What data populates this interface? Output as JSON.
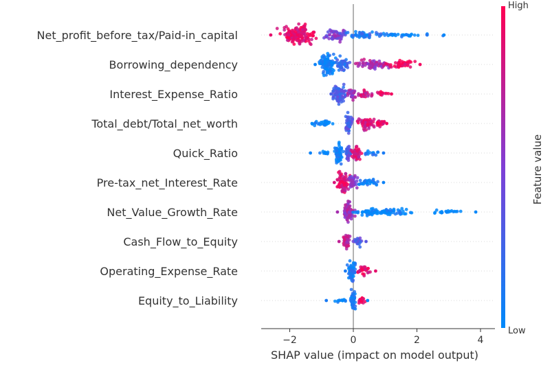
{
  "chart_data": {
    "type": "scatter",
    "subtype": "shap-beeswarm",
    "xlabel": "SHAP value (impact on model output)",
    "xlim": [
      -2.85,
      4.1
    ],
    "xticks": [
      -2,
      0,
      2,
      4
    ],
    "xtick_labels": [
      "−2",
      "0",
      "2",
      "4"
    ],
    "features": [
      {
        "name": "Net_profit_before_tax/Paid-in_capital",
        "min": -2.6,
        "max": 2.85,
        "clusters": [
          {
            "c": -1.75,
            "w": 0.45,
            "h": 0.9,
            "n": 150,
            "v": 0.9
          },
          {
            "c": -0.55,
            "w": 0.3,
            "h": 0.55,
            "n": 55,
            "v": 0.5
          },
          {
            "c": 0.3,
            "w": 0.6,
            "h": 0.35,
            "n": 45,
            "v": 0.15
          },
          {
            "c": 1.5,
            "w": 0.9,
            "h": 0.15,
            "n": 35,
            "v": 0.02
          }
        ]
      },
      {
        "name": "Borrowing_dependency",
        "min": -1.2,
        "max": 2.1,
        "clusters": [
          {
            "c": -0.8,
            "w": 0.22,
            "h": 0.95,
            "n": 110,
            "v": 0.05
          },
          {
            "c": -0.35,
            "w": 0.2,
            "h": 0.6,
            "n": 50,
            "v": 0.2
          },
          {
            "c": 0.6,
            "w": 0.55,
            "h": 0.4,
            "n": 65,
            "v": 0.65
          },
          {
            "c": 1.5,
            "w": 0.45,
            "h": 0.3,
            "n": 45,
            "v": 0.95
          }
        ]
      },
      {
        "name": "Interest_Expense_Ratio",
        "min": -0.7,
        "max": 1.2,
        "clusters": [
          {
            "c": -0.45,
            "w": 0.2,
            "h": 0.9,
            "n": 95,
            "v": 0.3
          },
          {
            "c": -0.05,
            "w": 0.12,
            "h": 0.45,
            "n": 30,
            "v": 0.6
          },
          {
            "c": 0.35,
            "w": 0.25,
            "h": 0.35,
            "n": 30,
            "v": 0.8
          },
          {
            "c": 0.9,
            "w": 0.2,
            "h": 0.2,
            "n": 14,
            "v": 0.95
          }
        ]
      },
      {
        "name": "Total_debt/Total_net_worth",
        "min": -1.3,
        "max": 1.05,
        "clusters": [
          {
            "c": -0.95,
            "w": 0.3,
            "h": 0.25,
            "n": 25,
            "v": 0.0
          },
          {
            "c": -0.15,
            "w": 0.1,
            "h": 0.9,
            "n": 45,
            "v": 0.3
          },
          {
            "c": 0.4,
            "w": 0.3,
            "h": 0.55,
            "n": 55,
            "v": 0.85
          },
          {
            "c": 0.85,
            "w": 0.15,
            "h": 0.3,
            "n": 20,
            "v": 0.95
          }
        ]
      },
      {
        "name": "Quick_Ratio",
        "min": -1.35,
        "max": 0.95,
        "clusters": [
          {
            "c": -0.45,
            "w": 0.12,
            "h": 0.95,
            "n": 60,
            "v": 0.05
          },
          {
            "c": -0.15,
            "w": 0.1,
            "h": 0.7,
            "n": 40,
            "v": 0.35
          },
          {
            "c": 0.1,
            "w": 0.12,
            "h": 0.6,
            "n": 40,
            "v": 0.85
          },
          {
            "c": -0.9,
            "w": 0.3,
            "h": 0.15,
            "n": 12,
            "v": 0.0
          },
          {
            "c": 0.55,
            "w": 0.25,
            "h": 0.2,
            "n": 14,
            "v": 0.1
          }
        ]
      },
      {
        "name": "Pre-tax_net_Interest_Rate",
        "min": -0.6,
        "max": 0.95,
        "clusters": [
          {
            "c": -0.3,
            "w": 0.18,
            "h": 0.9,
            "n": 80,
            "v": 0.85
          },
          {
            "c": 0.0,
            "w": 0.12,
            "h": 0.6,
            "n": 40,
            "v": 0.5
          },
          {
            "c": 0.45,
            "w": 0.3,
            "h": 0.3,
            "n": 30,
            "v": 0.05
          }
        ]
      },
      {
        "name": "Net_Value_Growth_Rate",
        "min": -0.5,
        "max": 3.85,
        "clusters": [
          {
            "c": -0.15,
            "w": 0.15,
            "h": 0.95,
            "n": 70,
            "v": 0.65
          },
          {
            "c": 0.9,
            "w": 0.9,
            "h": 0.3,
            "n": 95,
            "v": 0.02
          },
          {
            "c": 2.9,
            "w": 0.5,
            "h": 0.15,
            "n": 20,
            "v": 0.02
          }
        ]
      },
      {
        "name": "Cash_Flow_to_Equity",
        "min": -0.45,
        "max": 0.4,
        "clusters": [
          {
            "c": -0.2,
            "w": 0.12,
            "h": 0.75,
            "n": 50,
            "v": 0.75
          },
          {
            "c": 0.15,
            "w": 0.12,
            "h": 0.4,
            "n": 25,
            "v": 0.35
          }
        ]
      },
      {
        "name": "Operating_Expense_Rate",
        "min": -0.25,
        "max": 0.7,
        "clusters": [
          {
            "c": -0.05,
            "w": 0.12,
            "h": 0.9,
            "n": 55,
            "v": 0.1
          },
          {
            "c": 0.35,
            "w": 0.18,
            "h": 0.4,
            "n": 30,
            "v": 0.9
          }
        ]
      },
      {
        "name": "Equity_to_Liability",
        "min": -0.85,
        "max": 0.45,
        "clusters": [
          {
            "c": 0.0,
            "w": 0.08,
            "h": 0.95,
            "n": 45,
            "v": 0.1
          },
          {
            "c": 0.25,
            "w": 0.12,
            "h": 0.35,
            "n": 18,
            "v": 0.9
          },
          {
            "c": -0.45,
            "w": 0.25,
            "h": 0.12,
            "n": 12,
            "v": 0.0
          }
        ]
      }
    ],
    "colorbar": {
      "label": "Feature value",
      "high_label": "High",
      "low_label": "Low",
      "low_color": "#008afb",
      "high_color": "#ff0052",
      "mid_color": "#7f3fd6"
    }
  }
}
